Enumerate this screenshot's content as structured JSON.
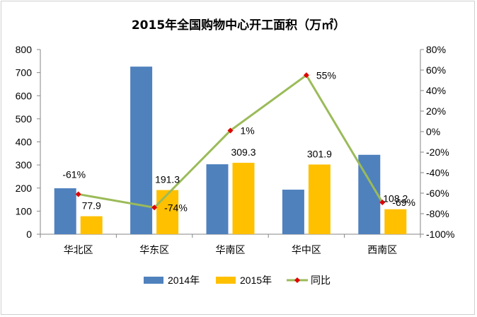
{
  "chart_data": {
    "type": "bar",
    "title": "2015年全国购物中心开工面积（万㎡）",
    "categories": [
      "华北区",
      "华东区",
      "华南区",
      "华中区",
      "西南区"
    ],
    "series": [
      {
        "name": "2014年",
        "type": "bar",
        "axis": "left",
        "color": "#4f81bd",
        "values": [
          199,
          726,
          303,
          193,
          344
        ]
      },
      {
        "name": "2015年",
        "type": "bar",
        "axis": "left",
        "color": "#ffc000",
        "values": [
          77.9,
          191.3,
          309.3,
          301.9,
          108.2
        ],
        "labels": [
          "77.9",
          "191.3",
          "309.3",
          "301.9",
          "108.2"
        ]
      },
      {
        "name": "同比",
        "type": "line",
        "axis": "right",
        "color": "#9bbb59",
        "marker_color": "#e00000",
        "values": [
          -61,
          -74,
          1,
          55,
          -69
        ],
        "labels": [
          "-61%",
          "-74%",
          "1%",
          "55%",
          "-69%"
        ]
      }
    ],
    "y_left": {
      "min": 0,
      "max": 800,
      "ticks": [
        "0",
        "100",
        "200",
        "300",
        "400",
        "500",
        "600",
        "700",
        "800"
      ]
    },
    "y_right": {
      "min": -100,
      "max": 80,
      "ticks": [
        "-100%",
        "-80%",
        "-60%",
        "-40%",
        "-20%",
        "0%",
        "20%",
        "40%",
        "60%",
        "80%"
      ]
    },
    "grid": false,
    "legend_position": "bottom"
  }
}
